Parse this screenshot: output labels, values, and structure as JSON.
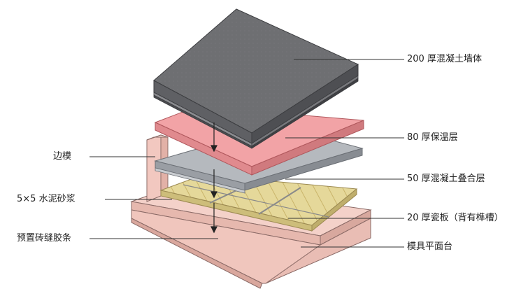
{
  "labels": {
    "wall": "200 厚混凝土墙体",
    "insulation": "80 厚保温层",
    "concrete_layer": "50 厚混凝土叠合层",
    "tile": "20 厚瓷板（背有榫槽）",
    "platform": "模具平面台",
    "side_form": "边模",
    "mortar": "5×5 水泥砂浆",
    "preset_strip": "预置砖缝胶条"
  },
  "colors": {
    "wall_top": "#6e6f72",
    "wall_side": "#55565a",
    "insulation": "#f0a0a4",
    "concrete_layer": "#a9adb3",
    "tile": "#e3d79a",
    "platform": "#f2c8c0",
    "leader_line": "#333333"
  }
}
